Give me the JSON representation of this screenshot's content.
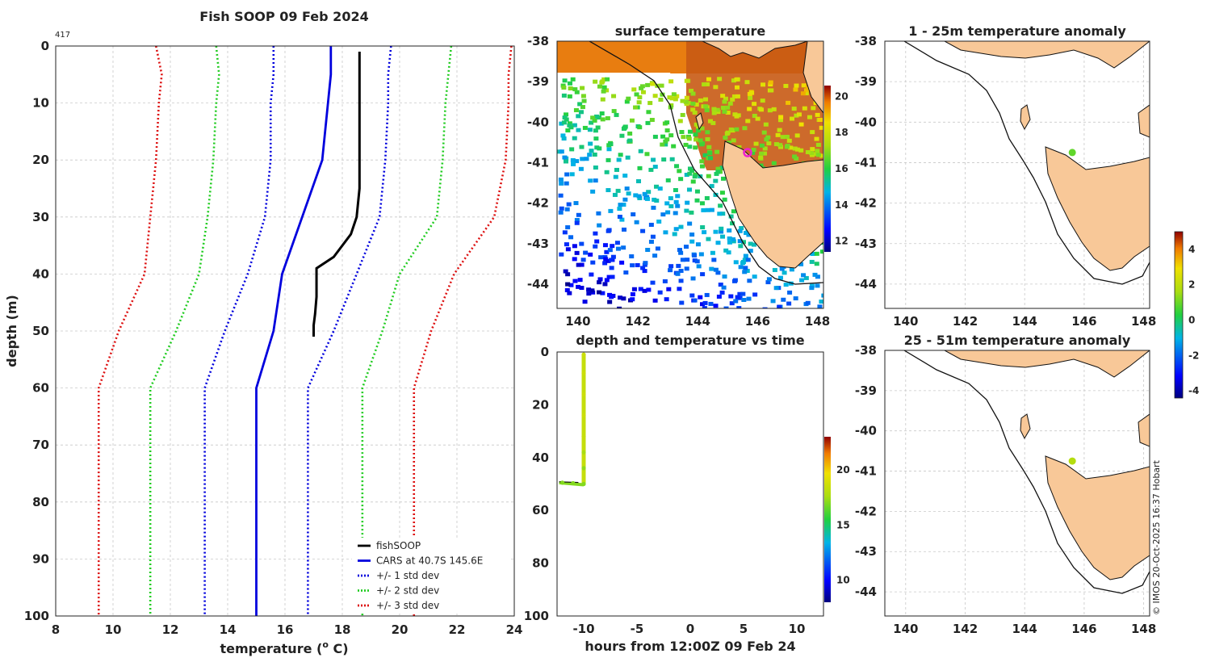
{
  "figure_title": "Fish SOOP 09 Feb 2024",
  "profile_count_label": "417",
  "copyright_note": "© IMOS 20-Oct-2025 16:37 Hobart",
  "panels": {
    "profile": {
      "title": "Fish SOOP 09 Feb 2024",
      "xlabel": "temperature (",
      "xlabel_sup": "o",
      "xlabel_end": " C)",
      "ylabel": "depth (m)"
    },
    "surface": {
      "title": "surface temperature"
    },
    "time": {
      "title": "depth and temperature vs time",
      "xlabel": "hours from 12:00Z 09 Feb 24"
    },
    "anom1": {
      "title": "1 - 25m temperature anomaly"
    },
    "anom2": {
      "title": "25 - 51m temperature anomaly"
    }
  },
  "legend": [
    {
      "label": "fishSOOP",
      "color": "#000000",
      "style": "solid"
    },
    {
      "label": "CARS at 40.7S 145.6E",
      "color": "#0000dd",
      "style": "solid"
    },
    {
      "label": "+/- 1 std dev",
      "color": "#0000dd",
      "style": "dotted"
    },
    {
      "label": "+/- 2 std dev",
      "color": "#22cc22",
      "style": "dotted"
    },
    {
      "label": "+/- 3 std dev",
      "color": "#dd1111",
      "style": "dotted"
    }
  ],
  "chart_data": [
    {
      "type": "line",
      "name": "profile",
      "title": "Fish SOOP 09 Feb 2024",
      "xlabel": "temperature (o C)",
      "ylabel": "depth (m)",
      "xlim": [
        8,
        24
      ],
      "ylim": [
        0,
        100
      ],
      "yreversed": true,
      "xticks": [
        8,
        10,
        12,
        14,
        16,
        18,
        20,
        22,
        24
      ],
      "yticks": [
        0,
        10,
        20,
        30,
        40,
        50,
        60,
        70,
        80,
        90,
        100
      ],
      "grid": true,
      "legend_position": "bottom-right",
      "depth": [
        0,
        5,
        10,
        20,
        30,
        40,
        50,
        60,
        70,
        80,
        90,
        100
      ],
      "fishSOOP": {
        "temp": [
          18.6,
          18.6,
          18.6,
          18.6,
          18.5,
          18.3,
          17.7,
          17.1,
          17.1,
          17.05,
          17.0,
          17.0
        ],
        "depth": [
          1,
          10,
          15,
          25,
          30,
          33,
          37,
          39,
          44,
          47,
          49,
          51
        ]
      },
      "series": [
        {
          "name": "CARS at 40.7S 145.6E",
          "color": "#0000dd",
          "dotted": false,
          "values": [
            17.6,
            17.6,
            17.5,
            17.3,
            16.6,
            15.9,
            15.6,
            15.0,
            15.0,
            15.0,
            15.0,
            15.0
          ]
        },
        {
          "name": "+1 std dev",
          "color": "#0000dd",
          "dotted": true,
          "values": [
            19.7,
            19.6,
            19.6,
            19.5,
            19.3,
            18.5,
            17.7,
            16.8,
            16.8,
            16.8,
            16.8,
            16.8
          ]
        },
        {
          "name": "-1 std dev",
          "color": "#0000dd",
          "dotted": true,
          "values": [
            15.6,
            15.6,
            15.5,
            15.5,
            15.3,
            14.7,
            13.9,
            13.2,
            13.2,
            13.2,
            13.2,
            13.2
          ]
        },
        {
          "name": "+2 std dev",
          "color": "#22cc22",
          "dotted": true,
          "values": [
            21.8,
            21.7,
            21.6,
            21.5,
            21.3,
            20.0,
            19.4,
            18.7,
            18.7,
            18.7,
            18.7,
            18.7
          ]
        },
        {
          "name": "-2 std dev",
          "color": "#22cc22",
          "dotted": true,
          "values": [
            13.6,
            13.7,
            13.6,
            13.5,
            13.3,
            13.0,
            12.2,
            11.3,
            11.3,
            11.3,
            11.3,
            11.3
          ]
        },
        {
          "name": "+3 std dev",
          "color": "#dd1111",
          "dotted": true,
          "values": [
            23.9,
            23.8,
            23.8,
            23.7,
            23.3,
            21.9,
            21.1,
            20.5,
            20.5,
            20.5,
            20.5,
            20.5
          ]
        },
        {
          "name": "-3 std dev",
          "color": "#dd1111",
          "dotted": true,
          "values": [
            11.5,
            11.7,
            11.6,
            11.5,
            11.3,
            11.1,
            10.2,
            9.5,
            9.5,
            9.5,
            9.5,
            9.5
          ]
        }
      ]
    },
    {
      "type": "heatmap",
      "name": "surface temperature",
      "title": "surface temperature",
      "xlim": [
        139.3,
        148.2
      ],
      "ylim": [
        -44.6,
        -38
      ],
      "xticks": [
        140,
        142,
        144,
        146,
        148
      ],
      "yticks": [
        -38,
        -39,
        -40,
        -41,
        -42,
        -43,
        -44
      ],
      "colorbar_range": [
        11.4,
        20.6
      ],
      "colorbar_ticks": [
        12,
        14,
        16,
        18,
        20
      ],
      "marker": {
        "lon": 145.6,
        "lat": -40.75,
        "color": "#ee22cc"
      }
    },
    {
      "type": "scatter",
      "name": "depth and temperature vs time",
      "title": "depth and temperature vs time",
      "xlabel": "hours from 12:00Z 09 Feb 24",
      "xlim": [
        -12.5,
        12.5
      ],
      "ylim": [
        0,
        100
      ],
      "yreversed": true,
      "xticks": [
        -10,
        -5,
        0,
        5,
        10
      ],
      "yticks": [
        0,
        20,
        40,
        60,
        80,
        100
      ],
      "colorbar_range": [
        8,
        23
      ],
      "colorbar_ticks": [
        10,
        15,
        20
      ],
      "points": [
        {
          "hours": -10,
          "depth": 1,
          "temp": 18.6
        },
        {
          "hours": -10,
          "depth": 8,
          "temp": 18.6
        },
        {
          "hours": -10,
          "depth": 16,
          "temp": 18.6
        },
        {
          "hours": -10,
          "depth": 24,
          "temp": 18.6
        },
        {
          "hours": -10,
          "depth": 32,
          "temp": 18.4
        },
        {
          "hours": -10,
          "depth": 38,
          "temp": 17.6
        },
        {
          "hours": -10,
          "depth": 44,
          "temp": 17.2
        },
        {
          "hours": -10,
          "depth": 50,
          "temp": 17.0
        },
        {
          "hours": -12,
          "depth": 49.5,
          "temp": 17.0
        },
        {
          "hours": -11,
          "depth": 49.7,
          "temp": 17.0
        }
      ]
    },
    {
      "type": "scatter",
      "name": "1 - 25m temperature anomaly",
      "title": "1 - 25m temperature anomaly",
      "xlim": [
        139.3,
        148.2
      ],
      "ylim": [
        -44.6,
        -38
      ],
      "xticks": [
        140,
        142,
        144,
        146,
        148
      ],
      "yticks": [
        -38,
        -39,
        -40,
        -41,
        -42,
        -43,
        -44
      ],
      "points": [
        {
          "lon": 145.6,
          "lat": -40.75,
          "anomaly": 0.9
        }
      ]
    },
    {
      "type": "scatter",
      "name": "25 - 51m temperature anomaly",
      "title": "25 - 51m temperature anomaly",
      "xlim": [
        139.3,
        148.2
      ],
      "ylim": [
        -44.6,
        -38
      ],
      "xticks": [
        140,
        142,
        144,
        146,
        148
      ],
      "yticks": [
        -38,
        -39,
        -40,
        -41,
        -42,
        -43,
        -44
      ],
      "points": [
        {
          "lon": 145.6,
          "lat": -40.75,
          "anomaly": 1.8
        }
      ],
      "colorbar_range": [
        -4.4,
        5.0
      ],
      "colorbar_ticks": [
        -4,
        -2,
        0,
        2,
        4
      ]
    }
  ]
}
